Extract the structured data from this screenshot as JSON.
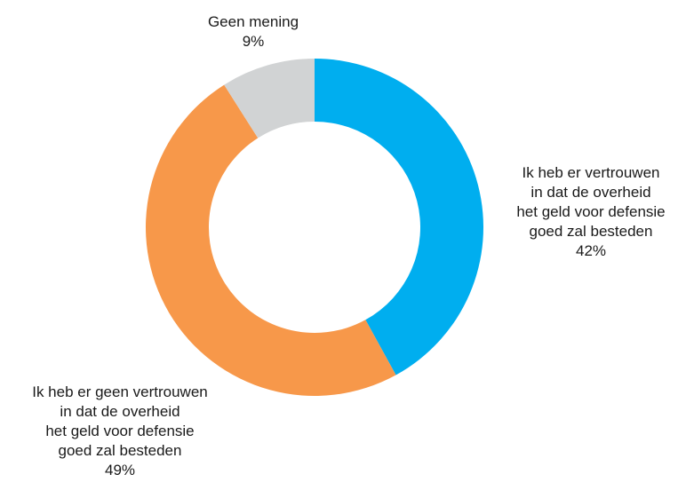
{
  "chart_data": {
    "type": "pie",
    "donut": true,
    "slices": [
      {
        "key": "vertrouwen",
        "label_lines": [
          "Ik heb er vertrouwen",
          "in dat de overheid",
          "het geld voor defensie",
          "goed zal besteden"
        ],
        "value": 42,
        "value_label": "42%",
        "color": "#00aeef"
      },
      {
        "key": "geen-vertrouwen",
        "label_lines": [
          "Ik heb er geen vertrouwen",
          "in dat de overheid",
          "het geld voor defensie",
          "goed zal besteden"
        ],
        "value": 49,
        "value_label": "49%",
        "color": "#f7984a"
      },
      {
        "key": "geen-mening",
        "label_lines": [
          "Geen mening"
        ],
        "value": 9,
        "value_label": "9%",
        "color": "#d1d3d4"
      }
    ],
    "start": "top",
    "direction": "clockwise"
  }
}
